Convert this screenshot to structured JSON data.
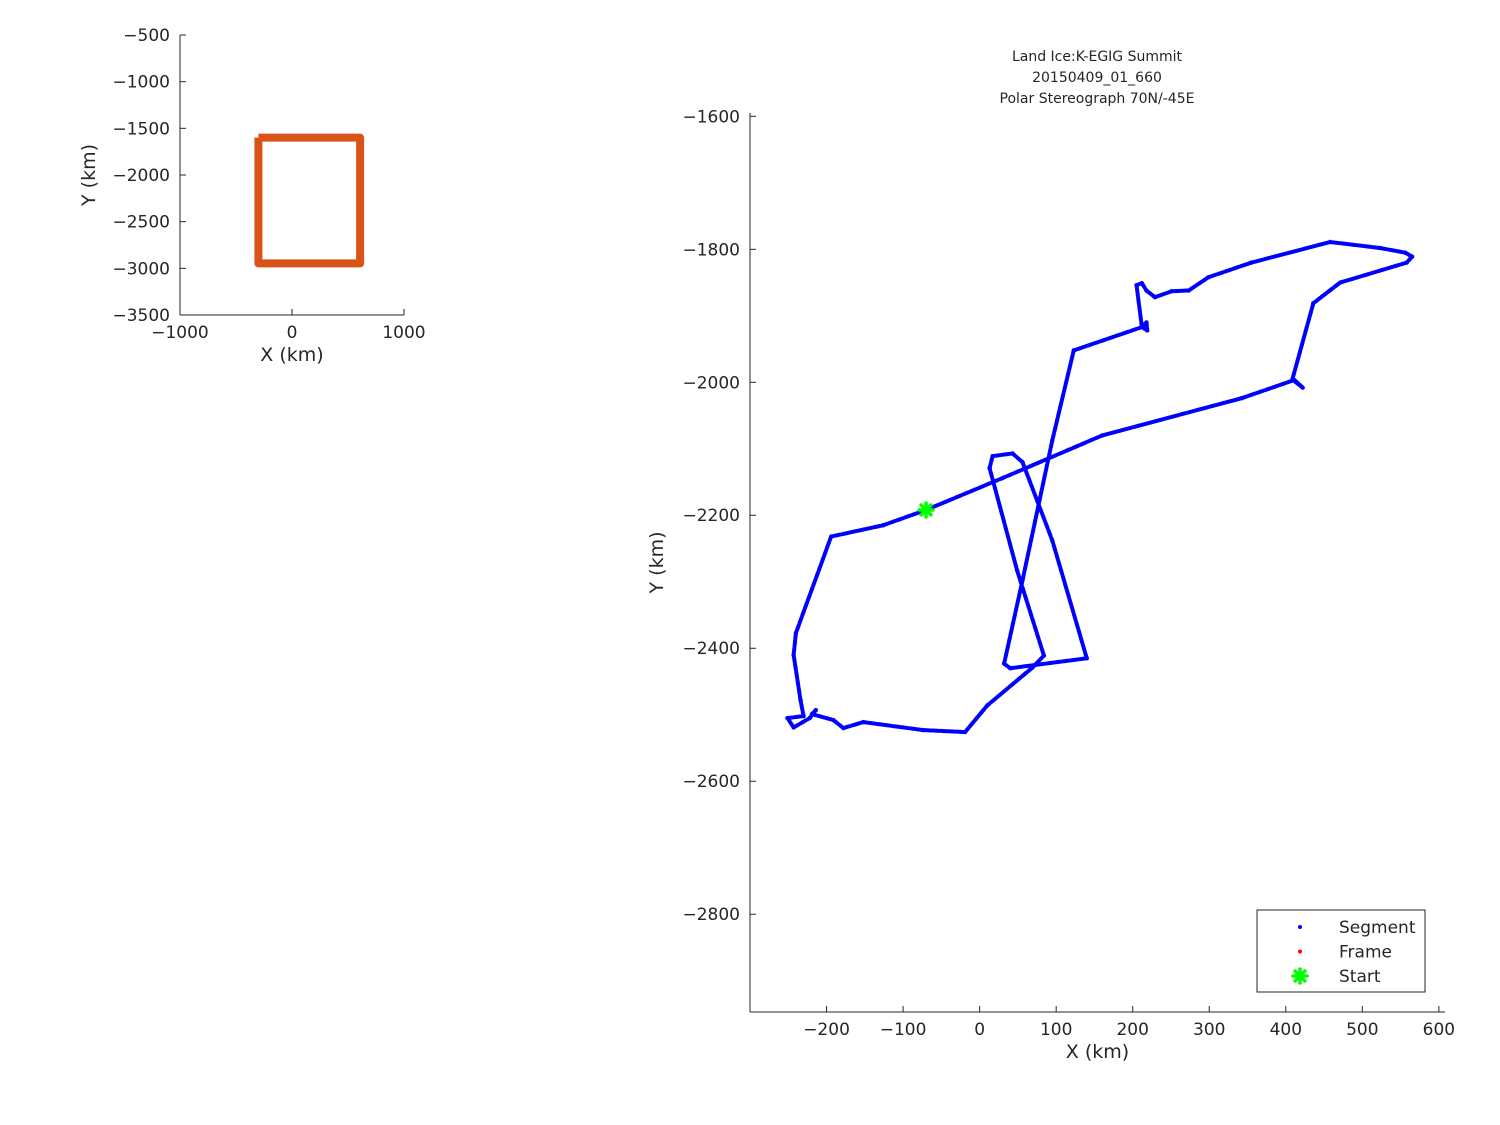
{
  "chart_data": [
    {
      "type": "line",
      "title": "",
      "xlabel": "X (km)",
      "ylabel": "Y (km)",
      "xlim": [
        -1000,
        1000
      ],
      "ylim": [
        -3500,
        -500
      ],
      "xticks": [
        -1000,
        0,
        1000
      ],
      "yticks": [
        -3500,
        -3000,
        -2500,
        -2000,
        -1500,
        -1000,
        -500
      ],
      "grid": false,
      "series": [
        {
          "color": "#d95319",
          "x": [
            -300,
            608,
            608,
            -300,
            -300
          ],
          "y": [
            -1600,
            -1600,
            -2947,
            -2947,
            -1600
          ]
        }
      ]
    },
    {
      "type": "scatter",
      "title": [
        "Land Ice:K-EGIG Summit",
        "20150409_01_660",
        "Polar Stereograph 70N/-45E"
      ],
      "xlabel": "X (km)",
      "ylabel": "Y (km)",
      "xlim": [
        -300,
        608
      ],
      "ylim": [
        -2947,
        -1595
      ],
      "xticks": [
        -200,
        -100,
        0,
        100,
        200,
        300,
        400,
        500,
        600
      ],
      "yticks": [
        -2800,
        -2600,
        -2400,
        -2200,
        -2000,
        -1800,
        -1600
      ],
      "grid": false,
      "legend_position": "bottom-right",
      "series": [
        {
          "name": "Segment",
          "color": "#0000ff",
          "marker": "dot",
          "x": [
            -70,
            30,
            160,
            342,
            410,
            422,
            409,
            436,
            471,
            558,
            565,
            556,
            523,
            458,
            355,
            299,
            273,
            251,
            229,
            218,
            212,
            205,
            212,
            219,
            218,
            212,
            123,
            95,
            56,
            32,
            40,
            140,
            95,
            56,
            43,
            17,
            13,
            49,
            84,
            69,
            10,
            -19,
            -74,
            -152,
            -178,
            -191,
            -219,
            -214,
            -222,
            -243,
            -251,
            -230,
            -234,
            -243,
            -240,
            -194,
            -126,
            -70
          ],
          "y": [
            -2192,
            -2144,
            -2080,
            -2024,
            -1997,
            -2008,
            -1994,
            -1881,
            -1850,
            -1820,
            -1811,
            -1805,
            -1798,
            -1789,
            -1820,
            -1842,
            -1862,
            -1863,
            -1872,
            -1862,
            -1851,
            -1854,
            -1917,
            -1922,
            -1910,
            -1917,
            -1952,
            -2087,
            -2298,
            -2423,
            -2430,
            -2415,
            -2238,
            -2120,
            -2107,
            -2111,
            -2129,
            -2283,
            -2411,
            -2429,
            -2486,
            -2526,
            -2523,
            -2511,
            -2520,
            -2508,
            -2499,
            -2493,
            -2505,
            -2519,
            -2505,
            -2502,
            -2478,
            -2410,
            -2377,
            -2232,
            -2215,
            -2192
          ]
        },
        {
          "name": "Frame",
          "color": "#ff0000",
          "marker": "dot",
          "x": [],
          "y": []
        },
        {
          "name": "Start",
          "color": "#00ff00",
          "marker": "asterisk",
          "x": [
            -70
          ],
          "y": [
            -2192
          ]
        }
      ]
    }
  ]
}
